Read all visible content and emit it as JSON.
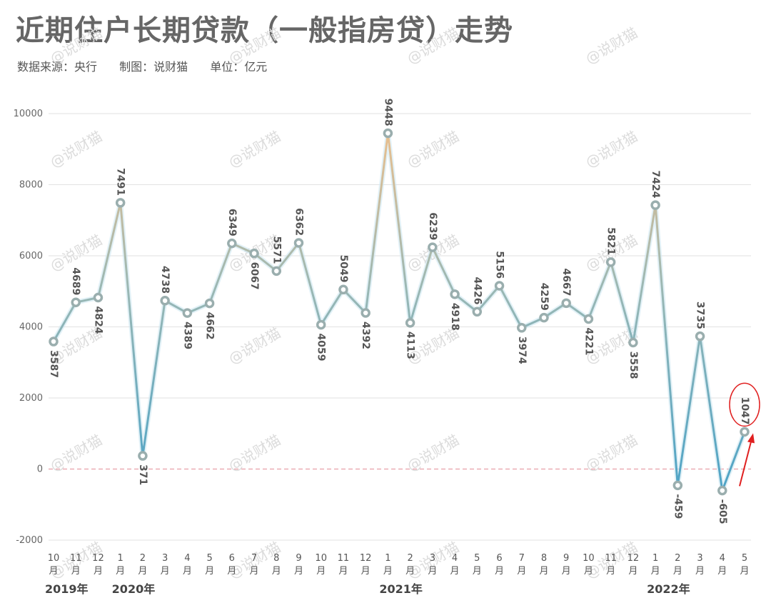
{
  "title": "近期住户长期贷款（一般指房贷）走势",
  "subtitle": {
    "source": "数据来源：央行",
    "maker": "制图：说财猫",
    "unit": "单位：亿元"
  },
  "watermark": "@说财猫",
  "colors": {
    "line_high": "#f2c08a",
    "line_mid": "#9bb8b4",
    "line_low": "#4aa3c8",
    "marker": "#9aaeae",
    "zero_line": "#e8a0a8",
    "highlight": "#e02020",
    "grid": "#e2e2e2"
  },
  "chart_data": {
    "type": "line",
    "ylim": [
      -2000,
      10000
    ],
    "yticks": [
      -2000,
      0,
      2000,
      4000,
      6000,
      8000,
      10000
    ],
    "grid": true,
    "categories": [
      "10",
      "11",
      "12",
      "1",
      "2",
      "3",
      "4",
      "5",
      "6",
      "7",
      "8",
      "9",
      "10",
      "11",
      "12",
      "1",
      "2",
      "3",
      "4",
      "5",
      "6",
      "7",
      "8",
      "9",
      "10",
      "11",
      "12",
      "1",
      "2",
      "3",
      "4",
      "5"
    ],
    "month_suffix": "月",
    "years": [
      {
        "label": "2019年",
        "index": 0
      },
      {
        "label": "2020年",
        "index": 3
      },
      {
        "label": "2021年",
        "index": 15
      },
      {
        "label": "2022年",
        "index": 27
      }
    ],
    "series": [
      {
        "values": [
          3587,
          4689,
          4824,
          7491,
          371,
          4738,
          4389,
          4662,
          6349,
          6067,
          5571,
          6362,
          4059,
          5049,
          4392,
          9448,
          4113,
          6239,
          4918,
          4426,
          5156,
          3974,
          4259,
          4667,
          4221,
          5821,
          3558,
          7424,
          -459,
          3735,
          -605,
          1047
        ]
      }
    ],
    "label_position": [
      "below",
      "above",
      "below",
      "above",
      "below",
      "above",
      "below",
      "below",
      "above",
      "below",
      "above",
      "above",
      "below",
      "above",
      "below",
      "above",
      "below",
      "above",
      "below",
      "above",
      "above",
      "below",
      "above",
      "above",
      "below",
      "above",
      "below",
      "above",
      "below",
      "above",
      "below",
      "above"
    ],
    "highlight_index": 31
  }
}
